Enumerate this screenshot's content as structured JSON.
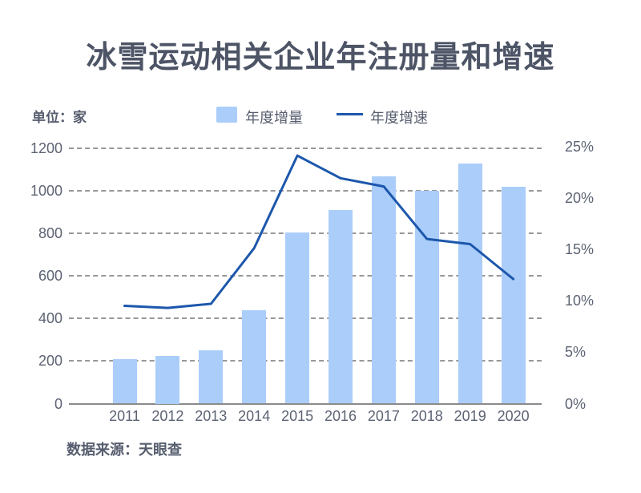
{
  "page": {
    "title": "冰雪运动相关企业年注册量和增速",
    "unit_label": "单位：家",
    "source_label": "数据来源：天眼查"
  },
  "legend": {
    "bar_label": "年度增量",
    "line_label": "年度增速",
    "position": "top-center"
  },
  "colors": {
    "background": "#ffffff",
    "bar_fill": "#abcdfa",
    "line_stroke": "#1c57ac",
    "title_text": "#4d5466",
    "axis_text": "#5c6373",
    "gridline": "#989898"
  },
  "chart_data": {
    "type": "bar",
    "subtype": "bar-line-combo",
    "title": "冰雪运动相关企业年注册量和增速",
    "categories": [
      "2011",
      "2012",
      "2013",
      "2014",
      "2015",
      "2016",
      "2017",
      "2018",
      "2019",
      "2020"
    ],
    "series": [
      {
        "name": "年度增量",
        "type": "bar",
        "axis": "left",
        "unit": "家",
        "values": [
          210,
          225,
          250,
          440,
          805,
          910,
          1070,
          1000,
          1130,
          1020
        ]
      },
      {
        "name": "年度增速",
        "type": "line",
        "axis": "right",
        "unit": "%",
        "values": [
          9.5,
          9.3,
          9.7,
          15.1,
          24.1,
          21.9,
          21.1,
          16.0,
          15.5,
          12.1
        ]
      }
    ],
    "left_axis": {
      "label": "单位：家",
      "range": [
        0,
        1200
      ],
      "tick_values": [
        0,
        200,
        400,
        600,
        800,
        1000,
        1200
      ]
    },
    "right_axis": {
      "range": [
        0,
        25
      ],
      "tick_values": [
        0,
        5,
        10,
        15,
        20,
        25
      ],
      "tick_labels": [
        "0%",
        "5%",
        "10%",
        "15%",
        "20%",
        "25%"
      ]
    },
    "grid": "horizontal dashed",
    "legend_position": "top"
  }
}
